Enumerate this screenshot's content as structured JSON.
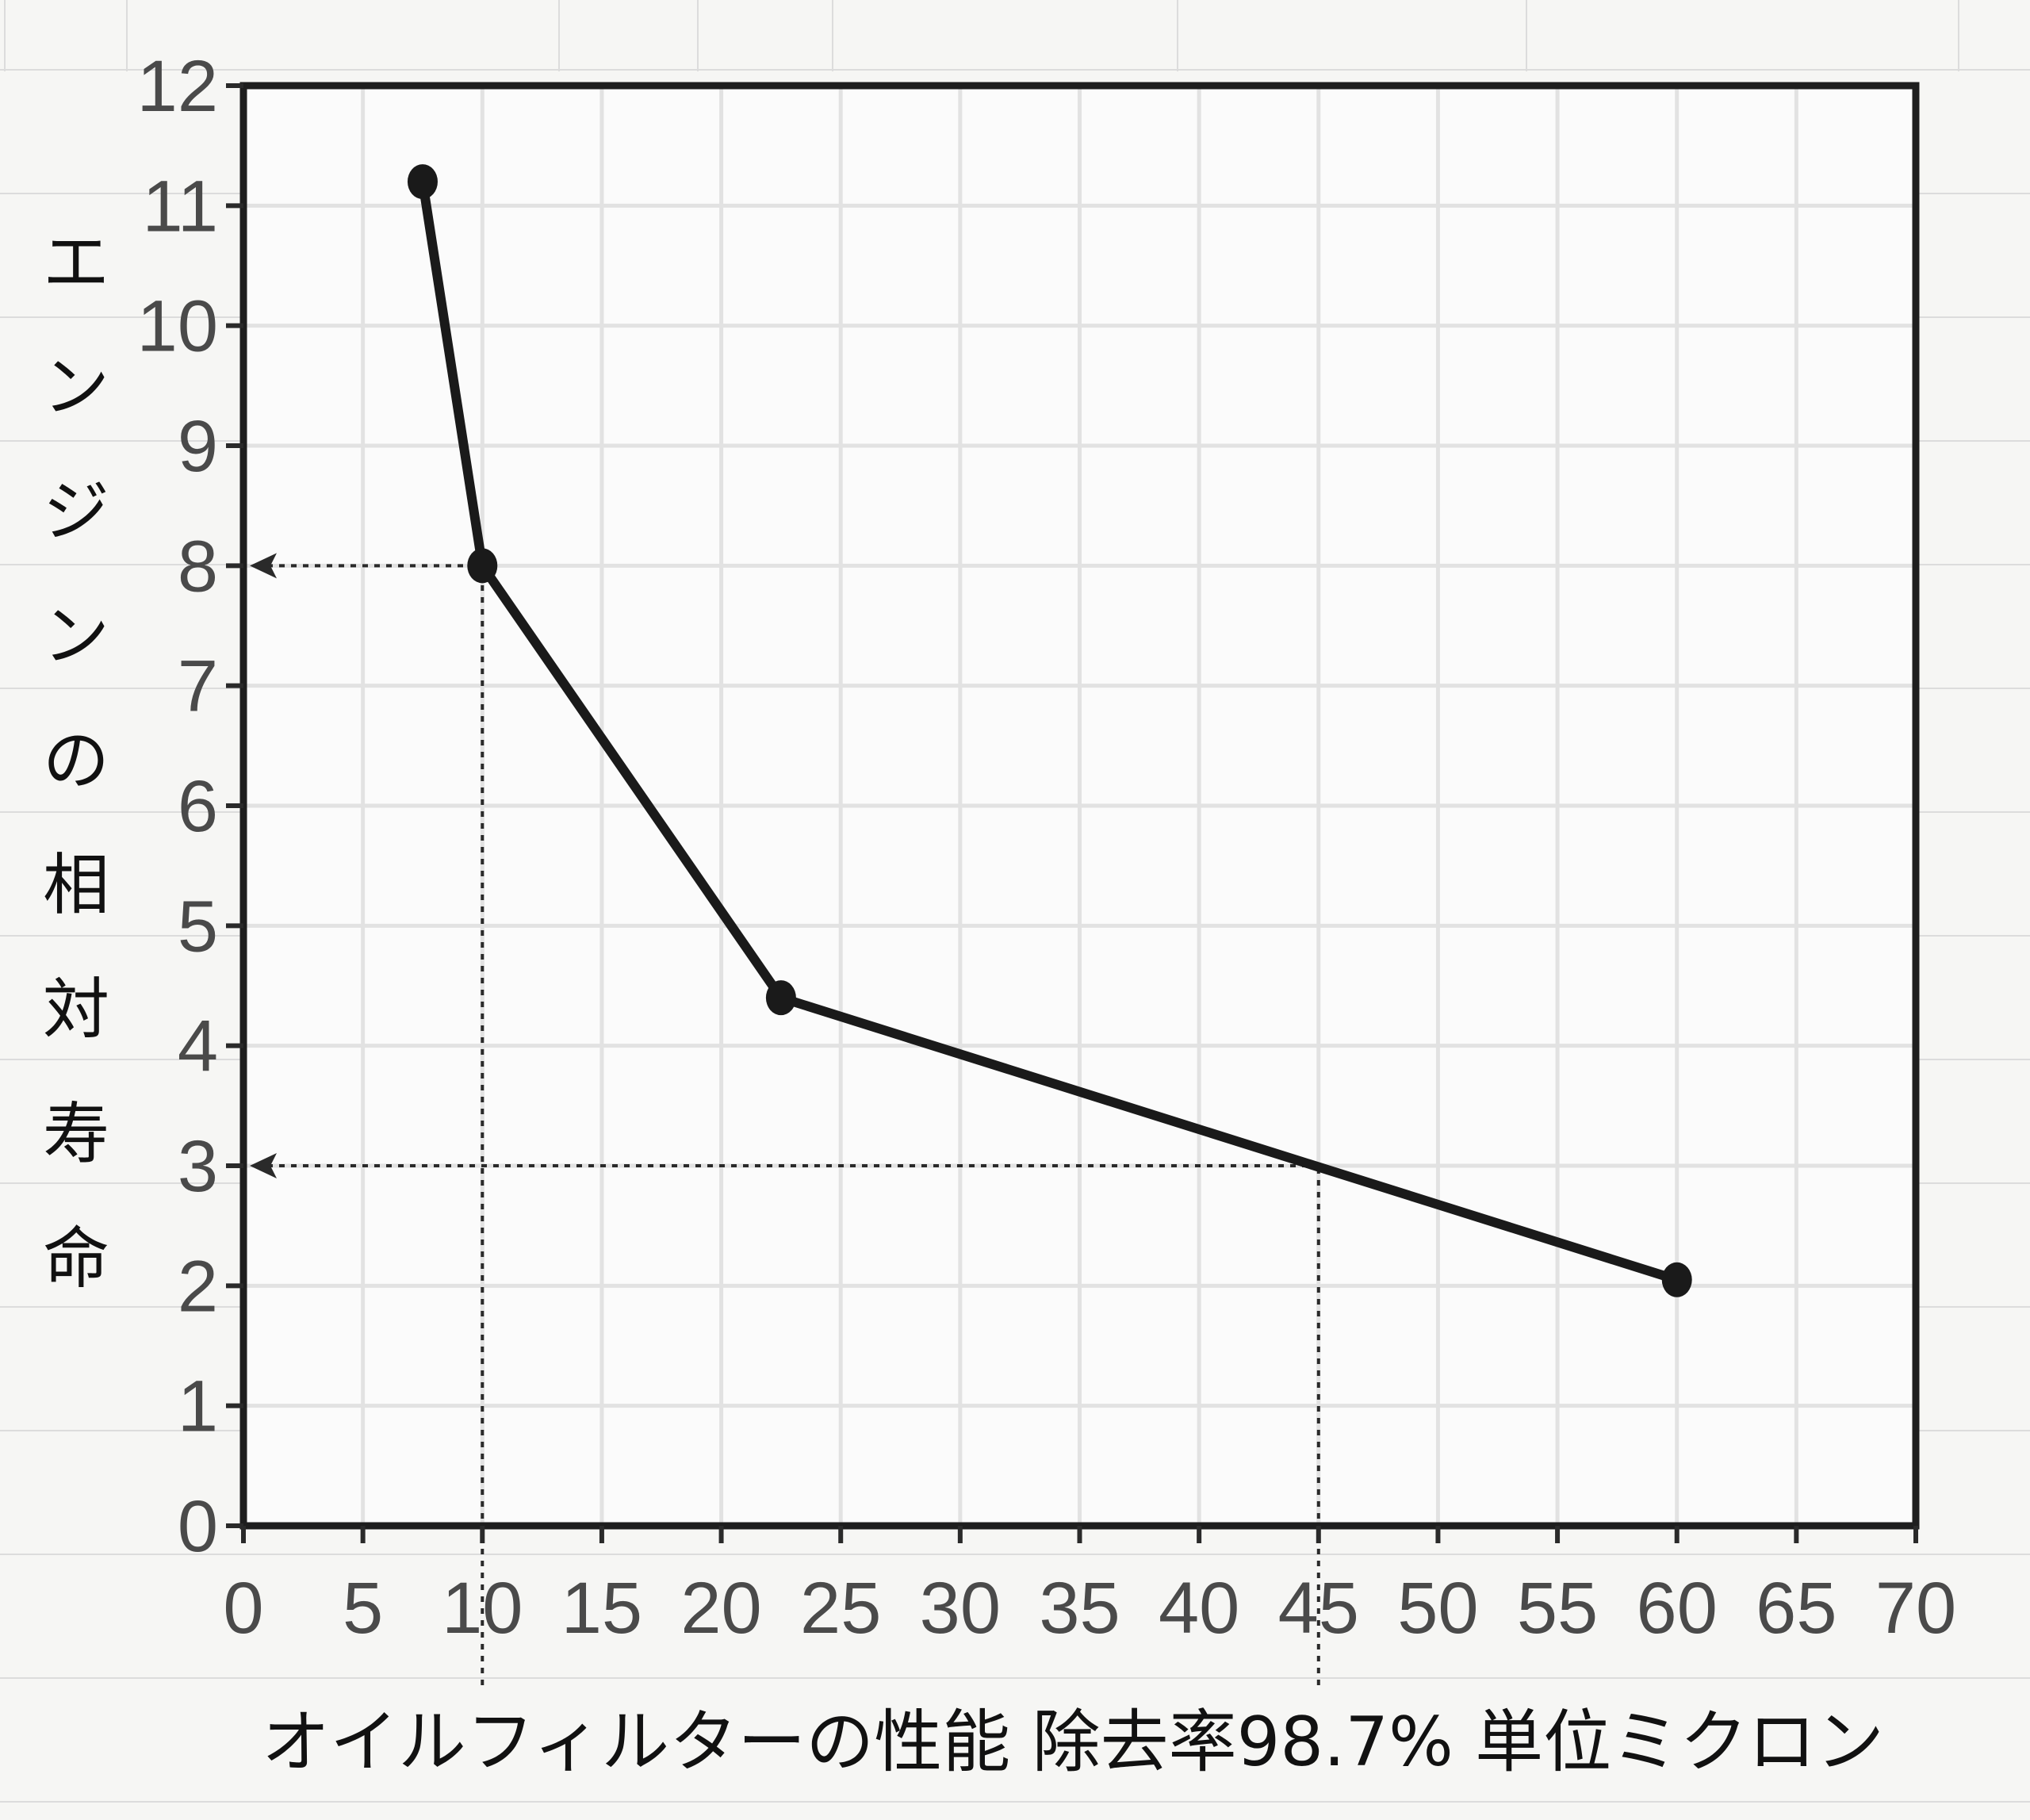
{
  "chart_data": {
    "type": "line",
    "xlabel": "オイルフィルターの性能  除去率98.7%  単位ミクロン",
    "ylabel": "エンジンの相対寿命",
    "xlim": [
      0,
      70
    ],
    "ylim": [
      0,
      12
    ],
    "x_ticks": [
      0,
      5,
      10,
      15,
      20,
      25,
      30,
      35,
      40,
      45,
      50,
      55,
      60,
      65,
      70
    ],
    "y_ticks": [
      0,
      1,
      2,
      3,
      4,
      5,
      6,
      7,
      8,
      9,
      10,
      11,
      12
    ],
    "grid": true,
    "series": [
      {
        "points": [
          {
            "x": 7.5,
            "y": 11.2
          },
          {
            "x": 10,
            "y": 8.0
          },
          {
            "x": 22.5,
            "y": 4.4
          },
          {
            "x": 60,
            "y": 2.05
          }
        ]
      }
    ],
    "guides": [
      {
        "x": 10,
        "y": 8
      },
      {
        "x": 45,
        "y": 3
      }
    ],
    "colors": {
      "line": "#1a1a1a",
      "grid": "#e2e2e2",
      "frame": "#1e1e1e"
    }
  }
}
